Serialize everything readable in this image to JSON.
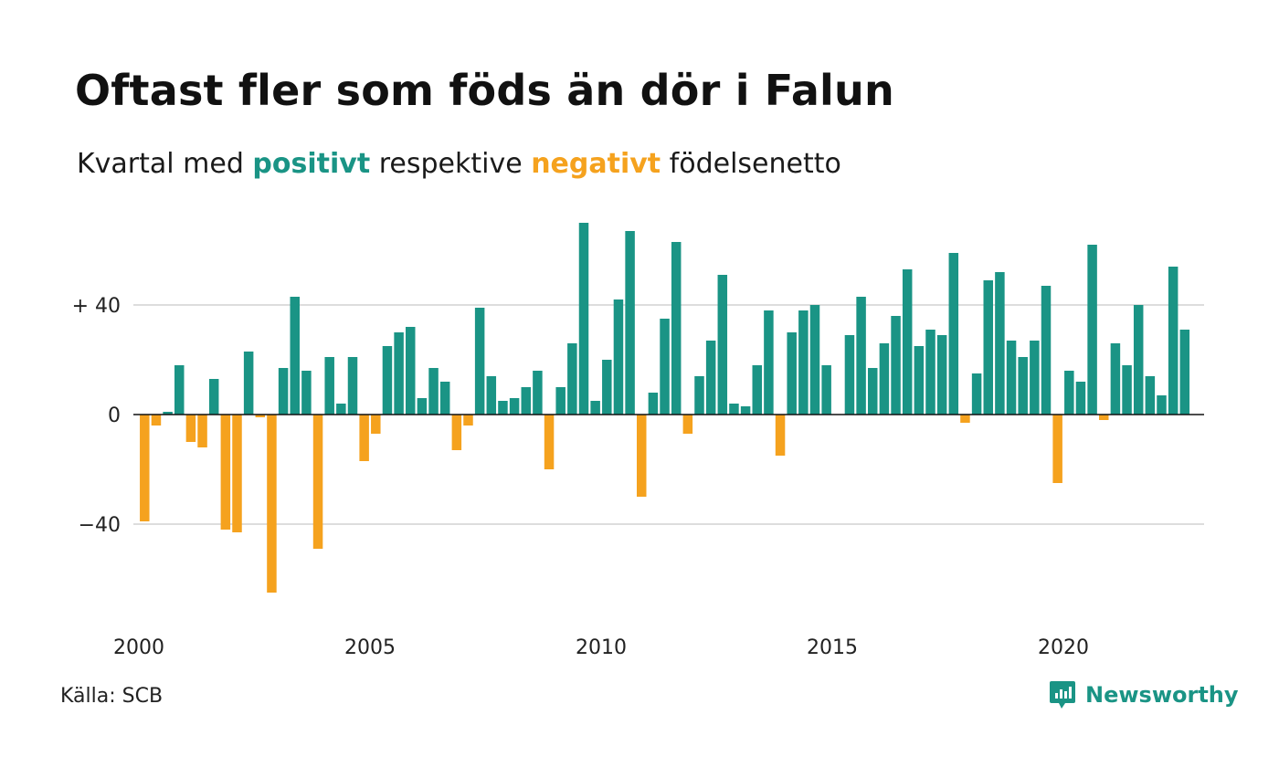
{
  "title": "Oftast fler som föds än dör i Falun",
  "subtitle": {
    "prefix": "Kvartal med ",
    "positive_word": "positivt",
    "middle": " respektive ",
    "negative_word": "negativt",
    "suffix": " födelsenetto"
  },
  "source": "Källa: SCB",
  "brand": {
    "name": "Newsworthy",
    "icon": "newsworthy-logo-icon"
  },
  "colors": {
    "positive": "#1a9485",
    "negative": "#f5a21e",
    "grid": "#dddddd",
    "baseline": "#111111"
  },
  "chart_data": {
    "type": "bar",
    "x_start": 2000,
    "x_step": 0.25,
    "ylim": [
      -67,
      72
    ],
    "y_ticks": [
      {
        "value": 40,
        "label": "+ 40"
      },
      {
        "value": 0,
        "label": "0"
      },
      {
        "value": -40,
        "label": "−40"
      }
    ],
    "x_ticks": [
      {
        "value": 2000,
        "label": "2000"
      },
      {
        "value": 2005,
        "label": "2005"
      },
      {
        "value": 2010,
        "label": "2010"
      },
      {
        "value": 2015,
        "label": "2015"
      },
      {
        "value": 2020,
        "label": "2020"
      }
    ],
    "grid": true,
    "values": [
      -39,
      -4,
      1,
      18,
      -10,
      -12,
      13,
      -42,
      -43,
      23,
      -1,
      -65,
      17,
      43,
      16,
      -49,
      21,
      4,
      21,
      -17,
      -7,
      25,
      30,
      32,
      6,
      17,
      12,
      -13,
      -4,
      39,
      14,
      5,
      6,
      10,
      16,
      -20,
      10,
      26,
      70,
      5,
      20,
      42,
      67,
      -30,
      8,
      35,
      63,
      -7,
      14,
      27,
      51,
      4,
      3,
      18,
      38,
      -15,
      30,
      38,
      40,
      18,
      0,
      29,
      43,
      17,
      26,
      36,
      53,
      25,
      31,
      29,
      59,
      -3,
      15,
      49,
      52,
      27,
      21,
      27,
      47,
      -25,
      16,
      12,
      62,
      -2,
      26,
      18,
      40,
      14,
      7,
      54,
      31
    ]
  }
}
